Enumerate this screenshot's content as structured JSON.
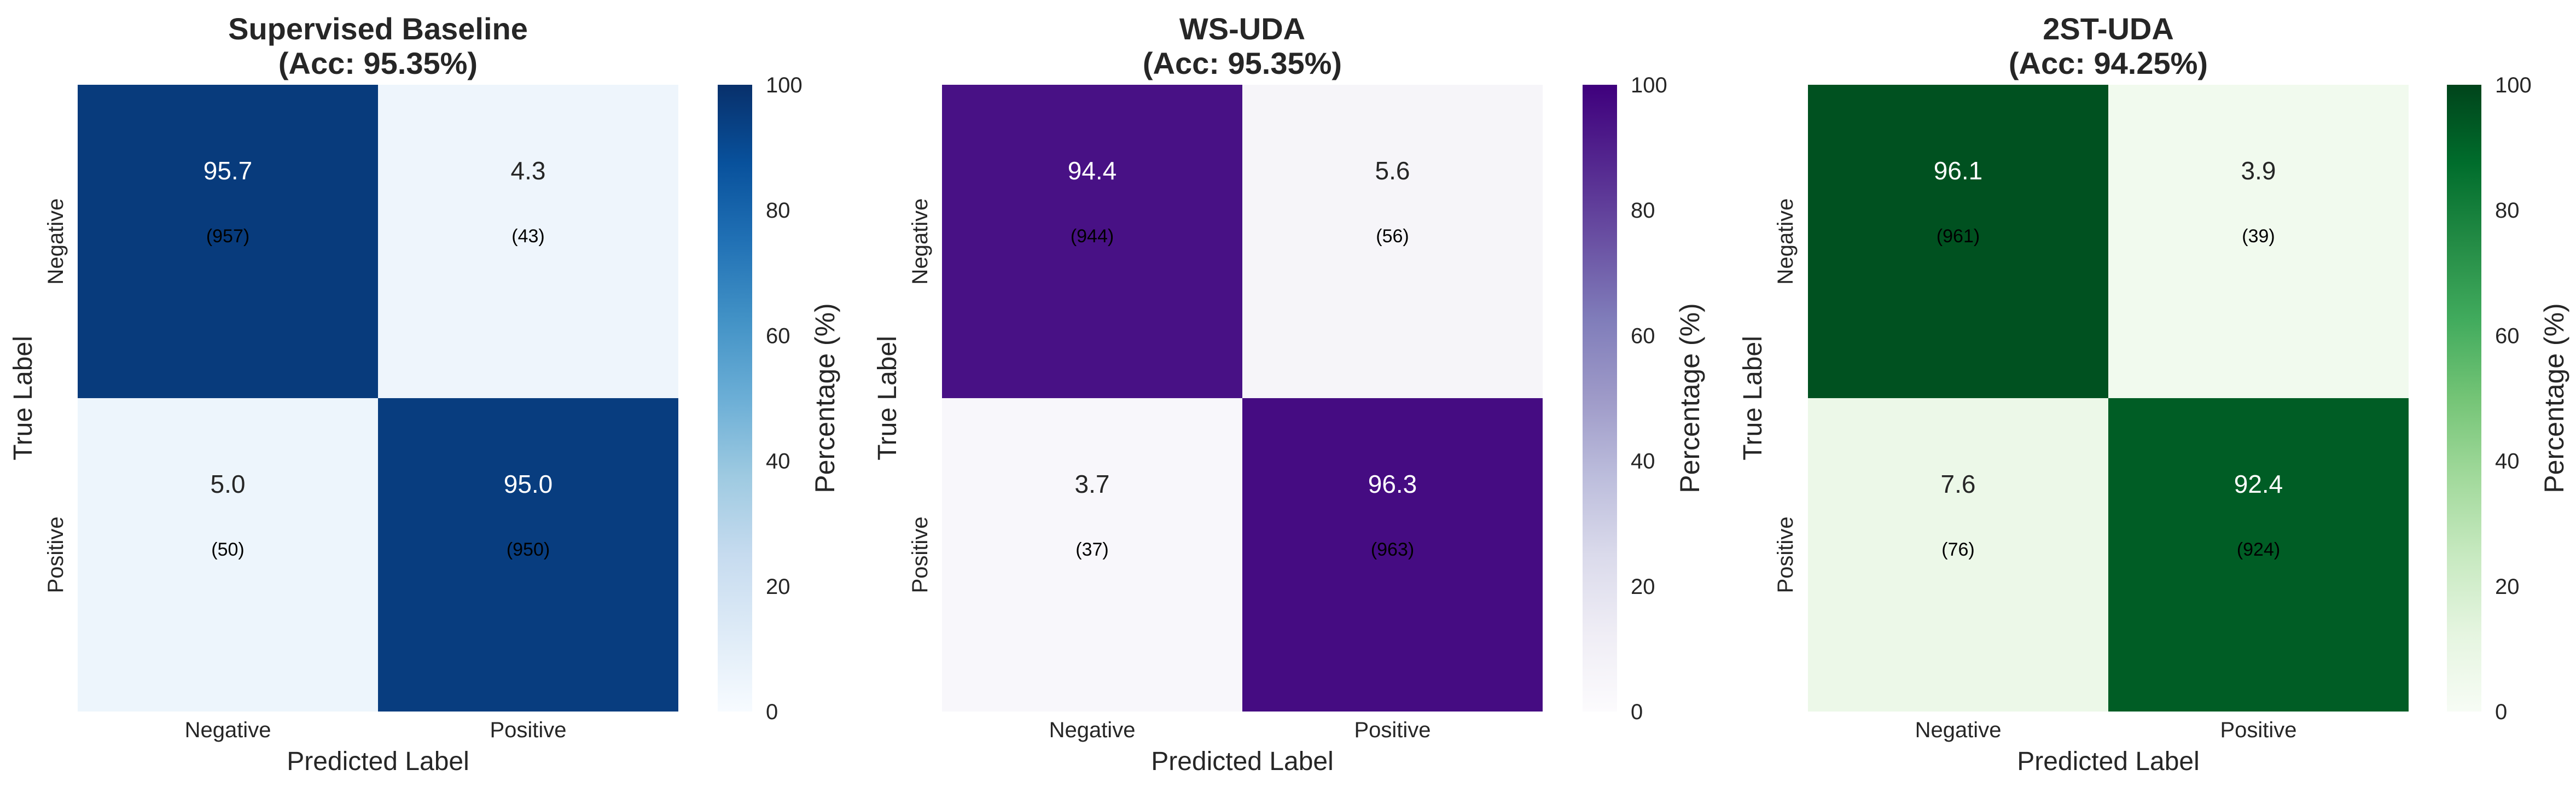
{
  "chart_data": [
    {
      "type": "heatmap",
      "title_line1": "Supervised Baseline",
      "title_line2": "(Acc: 95.35%)",
      "xlabel": "Predicted Label",
      "ylabel": "True Label",
      "x_categories": [
        "Negative",
        "Positive"
      ],
      "y_categories": [
        "Negative",
        "Positive"
      ],
      "values": [
        [
          95.7,
          4.3
        ],
        [
          5.0,
          95.0
        ]
      ],
      "value_labels": [
        [
          "95.7",
          "4.3"
        ],
        [
          "5.0",
          "95.0"
        ]
      ],
      "counts": [
        [
          "(957)",
          "(43)"
        ],
        [
          "(50)",
          "(950)"
        ]
      ],
      "colorbar_label": "Percentage (%)",
      "colorbar_ticks": [
        "0",
        "20",
        "40",
        "60",
        "80",
        "100"
      ],
      "zlim": [
        0,
        100
      ],
      "colormap": "Blues",
      "colors": {
        "low": "#f7fbff",
        "high": "#08306b"
      }
    },
    {
      "type": "heatmap",
      "title_line1": "WS-UDA",
      "title_line2": "(Acc: 95.35%)",
      "xlabel": "Predicted Label",
      "ylabel": "True Label",
      "x_categories": [
        "Negative",
        "Positive"
      ],
      "y_categories": [
        "Negative",
        "Positive"
      ],
      "values": [
        [
          94.4,
          5.6
        ],
        [
          3.7,
          96.3
        ]
      ],
      "value_labels": [
        [
          "94.4",
          "5.6"
        ],
        [
          "3.7",
          "96.3"
        ]
      ],
      "counts": [
        [
          "(944)",
          "(56)"
        ],
        [
          "(37)",
          "(963)"
        ]
      ],
      "colorbar_label": "Percentage (%)",
      "colorbar_ticks": [
        "0",
        "20",
        "40",
        "60",
        "80",
        "100"
      ],
      "zlim": [
        0,
        100
      ],
      "colormap": "Purples",
      "colors": {
        "low": "#fcfbfd",
        "high": "#3f007d"
      }
    },
    {
      "type": "heatmap",
      "title_line1": "2ST-UDA",
      "title_line2": "(Acc: 94.25%)",
      "xlabel": "Predicted Label",
      "ylabel": "True Label",
      "x_categories": [
        "Negative",
        "Positive"
      ],
      "y_categories": [
        "Negative",
        "Positive"
      ],
      "values": [
        [
          96.1,
          3.9
        ],
        [
          7.6,
          92.4
        ]
      ],
      "value_labels": [
        [
          "96.1",
          "3.9"
        ],
        [
          "7.6",
          "92.4"
        ]
      ],
      "counts": [
        [
          "(961)",
          "(39)"
        ],
        [
          "(76)",
          "(924)"
        ]
      ],
      "colorbar_label": "Percentage (%)",
      "colorbar_ticks": [
        "0",
        "20",
        "40",
        "60",
        "80",
        "100"
      ],
      "zlim": [
        0,
        100
      ],
      "colormap": "Greens",
      "colors": {
        "low": "#f7fcf5",
        "high": "#00441b"
      }
    }
  ]
}
